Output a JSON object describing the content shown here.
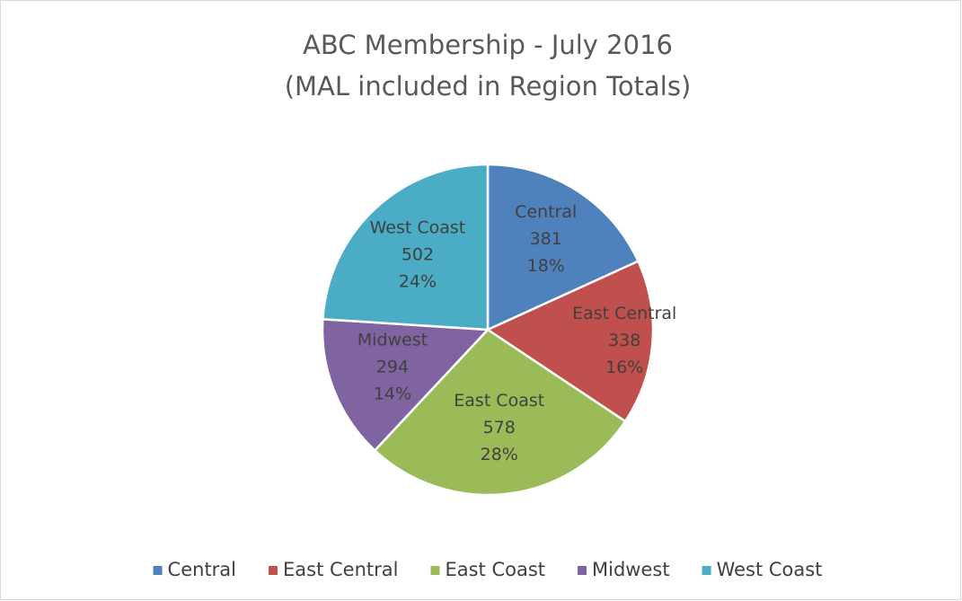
{
  "chart_data": {
    "type": "pie",
    "title": "ABC Membership - July 2016",
    "subtitle": "(MAL included in Region Totals)",
    "categories": [
      "Central",
      "East Central",
      "East Coast",
      "Midwest",
      "West Coast"
    ],
    "values": [
      381,
      338,
      578,
      294,
      502
    ],
    "percent_labels": [
      "18%",
      "16%",
      "28%",
      "14%",
      "24%"
    ],
    "colors": [
      "#4f81bd",
      "#c0504d",
      "#9bbb59",
      "#8064a2",
      "#4bacc6"
    ],
    "legend": "bottom"
  }
}
